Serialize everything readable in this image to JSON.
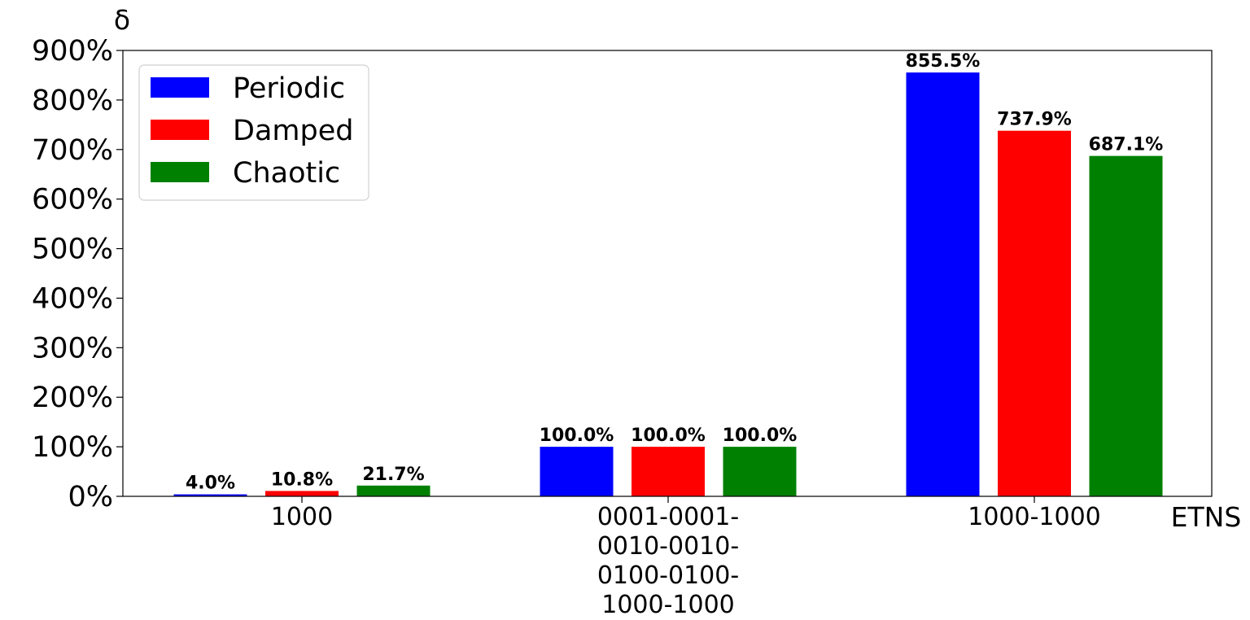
{
  "chart_data": {
    "type": "bar",
    "ylabel": "δ",
    "xlabel": "ETNS",
    "ylim": [
      0,
      900
    ],
    "yticks": [
      "0%",
      "100%",
      "200%",
      "300%",
      "400%",
      "500%",
      "600%",
      "700%",
      "800%",
      "900%"
    ],
    "categories": [
      [
        "1000"
      ],
      [
        "0001-0001-",
        "0010-0010-",
        "0100-0100-",
        "1000-1000"
      ],
      [
        "1000-1000"
      ]
    ],
    "series": [
      {
        "name": "Periodic",
        "color": "#0000ff",
        "values": [
          4.0,
          100.0,
          855.5
        ],
        "labels": [
          "4.0%",
          "100.0%",
          "855.5%"
        ]
      },
      {
        "name": "Damped",
        "color": "#ff0000",
        "values": [
          10.8,
          100.0,
          737.9
        ],
        "labels": [
          "10.8%",
          "100.0%",
          "737.9%"
        ]
      },
      {
        "name": "Chaotic",
        "color": "#008000",
        "values": [
          21.7,
          100.0,
          687.1
        ],
        "labels": [
          "21.7%",
          "100.0%",
          "687.1%"
        ]
      }
    ],
    "legend": "top-left",
    "grid": false
  }
}
